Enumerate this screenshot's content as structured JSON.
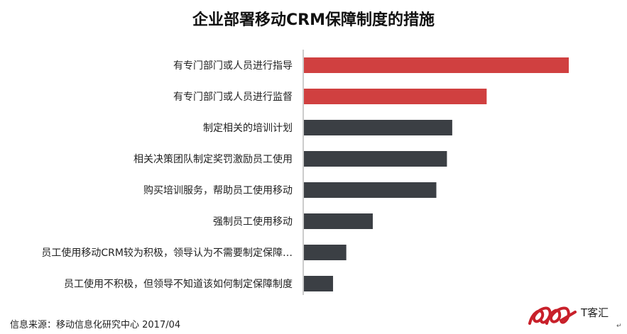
{
  "title": "企业部署移动CRM保障制度的措施",
  "source": "信息来源：移动信息化研究中心 2017/04",
  "logo": {
    "text": "T客汇"
  },
  "colors": {
    "highlight": "#d04040",
    "normal": "#3b3f44",
    "axis": "#999999"
  },
  "chart_data": {
    "type": "bar",
    "orientation": "horizontal",
    "categories": [
      "有专门部门或人员进行指导",
      "有专门部门或人员进行监督",
      "制定相关的培训计划",
      "相关决策团队制定奖罚激励员工使用",
      "购买培训服务，帮助员工使用移动",
      "强制员工使用移动",
      "员工使用移动CRM较为积极，领导认为不需要制定保障…",
      "员工使用不积极，但领导不知道该如何制定保障制度"
    ],
    "values": [
      100,
      69,
      56,
      54,
      50,
      26,
      16,
      11
    ],
    "highlight": [
      true,
      true,
      false,
      false,
      false,
      false,
      false,
      false
    ],
    "xlim": [
      0,
      100
    ],
    "grid": false
  }
}
